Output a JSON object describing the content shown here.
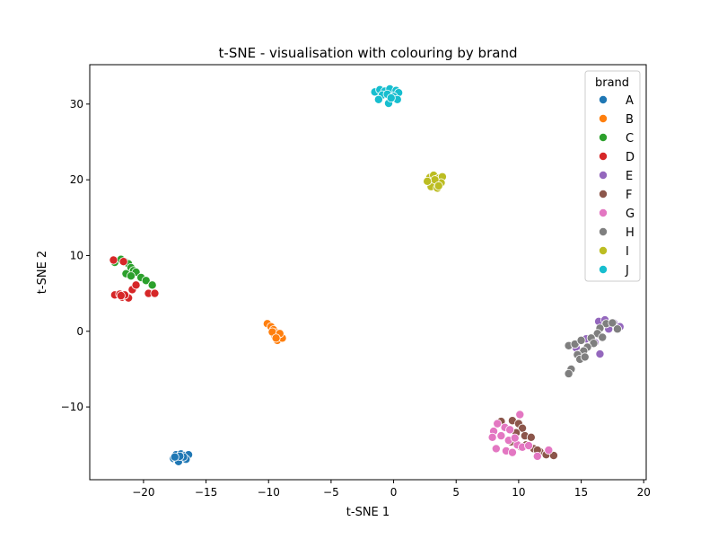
{
  "chart_data": {
    "type": "scatter",
    "title": "t-SNE - visualisation with colouring by brand",
    "xlabel": "t-SNE 1",
    "ylabel": "t-SNE 2",
    "xlim": [
      -24.3,
      20.2
    ],
    "ylim": [
      -19.6,
      35.2
    ],
    "xticks": [
      -20,
      -15,
      -10,
      -5,
      0,
      5,
      10,
      15,
      20
    ],
    "xtick_labels": [
      "−20",
      "−15",
      "−10",
      "−5",
      "0",
      "5",
      "10",
      "15",
      "20"
    ],
    "yticks": [
      -10,
      0,
      10,
      20,
      30
    ],
    "ytick_labels": [
      "−10",
      "0",
      "10",
      "20",
      "30"
    ],
    "grid": false,
    "legend": {
      "title": "brand",
      "placement": "top-right"
    },
    "series": [
      {
        "name": "A",
        "color": "#1f77b4",
        "points": [
          [
            -17.4,
            -16.3
          ],
          [
            -17.0,
            -16.2
          ],
          [
            -16.7,
            -16.4
          ],
          [
            -16.4,
            -16.3
          ],
          [
            -17.6,
            -16.8
          ],
          [
            -17.3,
            -17.0
          ],
          [
            -16.9,
            -16.7
          ],
          [
            -16.6,
            -16.9
          ],
          [
            -17.2,
            -17.2
          ],
          [
            -16.8,
            -16.6
          ],
          [
            -17.1,
            -16.5
          ],
          [
            -17.5,
            -16.6
          ]
        ]
      },
      {
        "name": "B",
        "color": "#ff7f0e",
        "points": [
          [
            -10.1,
            1.0
          ],
          [
            -9.8,
            0.6
          ],
          [
            -9.6,
            0.2
          ],
          [
            -9.4,
            -0.2
          ],
          [
            -9.2,
            -0.5
          ],
          [
            -9.5,
            -0.6
          ],
          [
            -9.0,
            -0.8
          ],
          [
            -9.3,
            -1.2
          ],
          [
            -8.9,
            -0.9
          ],
          [
            -9.7,
            -0.1
          ],
          [
            -9.1,
            -0.3
          ],
          [
            -9.4,
            -0.9
          ]
        ]
      },
      {
        "name": "C",
        "color": "#2ca02c",
        "points": [
          [
            -22.3,
            9.1
          ],
          [
            -21.8,
            9.5
          ],
          [
            -21.5,
            9.2
          ],
          [
            -21.2,
            8.9
          ],
          [
            -21.0,
            8.4
          ],
          [
            -20.8,
            8.0
          ],
          [
            -21.4,
            7.6
          ],
          [
            -20.6,
            7.8
          ],
          [
            -21.0,
            7.3
          ],
          [
            -20.2,
            7.1
          ],
          [
            -19.8,
            6.7
          ],
          [
            -19.3,
            6.1
          ]
        ]
      },
      {
        "name": "D",
        "color": "#d62728",
        "points": [
          [
            -22.4,
            9.4
          ],
          [
            -21.6,
            9.2
          ],
          [
            -22.3,
            4.8
          ],
          [
            -21.9,
            4.9
          ],
          [
            -21.7,
            4.5
          ],
          [
            -21.4,
            4.6
          ],
          [
            -21.2,
            4.4
          ],
          [
            -21.5,
            4.8
          ],
          [
            -20.9,
            5.5
          ],
          [
            -20.6,
            6.1
          ],
          [
            -19.6,
            5.0
          ],
          [
            -19.1,
            5.0
          ],
          [
            -21.8,
            4.7
          ]
        ]
      },
      {
        "name": "E",
        "color": "#9467bd",
        "points": [
          [
            16.4,
            1.3
          ],
          [
            16.9,
            1.5
          ],
          [
            17.6,
            1.1
          ],
          [
            18.1,
            0.6
          ],
          [
            17.2,
            0.3
          ],
          [
            15.4,
            -1.0
          ],
          [
            14.6,
            -2.2
          ],
          [
            15.0,
            -2.9
          ],
          [
            16.5,
            -3.0
          ],
          [
            16.1,
            -1.5
          ]
        ]
      },
      {
        "name": "F",
        "color": "#8c564b",
        "points": [
          [
            8.6,
            -11.9
          ],
          [
            9.5,
            -11.8
          ],
          [
            10.0,
            -12.2
          ],
          [
            10.3,
            -12.8
          ],
          [
            9.8,
            -13.4
          ],
          [
            10.5,
            -13.8
          ],
          [
            11.0,
            -14.0
          ],
          [
            9.4,
            -14.6
          ],
          [
            10.2,
            -15.3
          ],
          [
            11.2,
            -15.5
          ],
          [
            11.7,
            -15.9
          ],
          [
            12.2,
            -16.3
          ],
          [
            12.8,
            -16.4
          ],
          [
            10.6,
            -15.0
          ],
          [
            11.5,
            -15.7
          ]
        ]
      },
      {
        "name": "G",
        "color": "#e377c2",
        "points": [
          [
            10.1,
            -11.0
          ],
          [
            8.3,
            -12.2
          ],
          [
            8.9,
            -12.7
          ],
          [
            8.0,
            -13.2
          ],
          [
            9.3,
            -13.0
          ],
          [
            8.6,
            -13.8
          ],
          [
            7.9,
            -14.0
          ],
          [
            9.2,
            -14.4
          ],
          [
            9.9,
            -15.0
          ],
          [
            10.3,
            -15.3
          ],
          [
            8.2,
            -15.5
          ],
          [
            9.0,
            -15.8
          ],
          [
            9.5,
            -16.0
          ],
          [
            11.5,
            -16.5
          ],
          [
            12.4,
            -15.7
          ],
          [
            10.8,
            -15.1
          ],
          [
            9.7,
            -14.1
          ]
        ]
      },
      {
        "name": "H",
        "color": "#7f7f7f",
        "points": [
          [
            17.0,
            1.0
          ],
          [
            17.5,
            1.1
          ],
          [
            17.9,
            0.3
          ],
          [
            16.5,
            0.4
          ],
          [
            16.3,
            -0.3
          ],
          [
            15.8,
            -0.9
          ],
          [
            16.0,
            -1.6
          ],
          [
            15.5,
            -2.1
          ],
          [
            15.2,
            -2.6
          ],
          [
            14.7,
            -3.1
          ],
          [
            14.9,
            -3.7
          ],
          [
            15.3,
            -3.4
          ],
          [
            14.0,
            -1.9
          ],
          [
            14.5,
            -1.7
          ],
          [
            14.2,
            -5.0
          ],
          [
            14.0,
            -5.6
          ],
          [
            15.0,
            -1.2
          ],
          [
            16.7,
            -0.8
          ]
        ]
      },
      {
        "name": "I",
        "color": "#bcbd22",
        "points": [
          [
            2.9,
            20.3
          ],
          [
            3.2,
            20.6
          ],
          [
            3.6,
            20.2
          ],
          [
            3.9,
            20.4
          ],
          [
            3.1,
            19.7
          ],
          [
            3.4,
            19.5
          ],
          [
            3.8,
            19.6
          ],
          [
            3.0,
            19.1
          ],
          [
            3.5,
            18.9
          ],
          [
            3.3,
            20.0
          ],
          [
            2.7,
            19.8
          ],
          [
            3.6,
            19.2
          ]
        ]
      },
      {
        "name": "J",
        "color": "#17becf",
        "points": [
          [
            -1.5,
            31.6
          ],
          [
            -1.1,
            31.9
          ],
          [
            -0.7,
            31.7
          ],
          [
            -0.3,
            32.0
          ],
          [
            0.2,
            31.8
          ],
          [
            0.4,
            31.5
          ],
          [
            -0.9,
            31.2
          ],
          [
            -0.5,
            31.3
          ],
          [
            0.0,
            31.0
          ],
          [
            -1.2,
            30.6
          ],
          [
            -0.4,
            30.1
          ],
          [
            0.3,
            30.6
          ],
          [
            -0.2,
            30.8
          ]
        ]
      }
    ]
  }
}
